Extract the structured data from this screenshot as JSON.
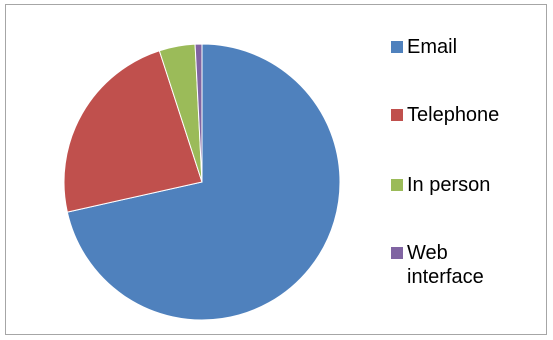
{
  "chart_data": {
    "type": "pie",
    "title": "",
    "categories": [
      "Email",
      "Telephone",
      "In person",
      "Web interface"
    ],
    "values": [
      71.5,
      23.5,
      4.2,
      0.8
    ],
    "unit": "percent",
    "colors": [
      "#4f81bd",
      "#c0504d",
      "#9bbb59",
      "#8064a2"
    ],
    "legend": {
      "position": "right",
      "entries": [
        "Email",
        "Telephone",
        "In person",
        "Web interface"
      ]
    },
    "start_angle": "12 o'clock",
    "direction": "clockwise"
  }
}
